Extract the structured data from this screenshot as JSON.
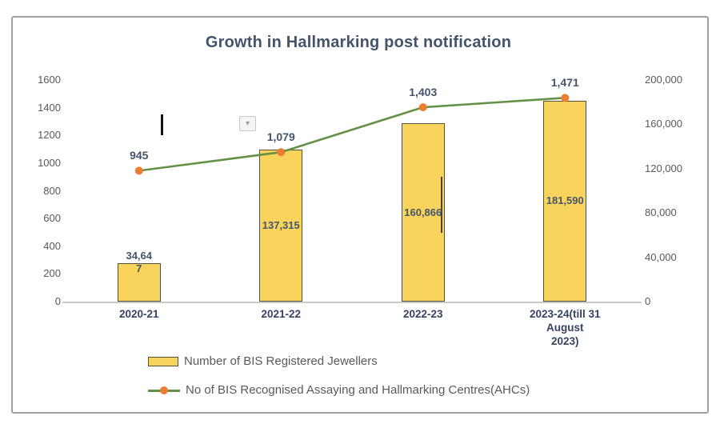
{
  "chart_data": {
    "type": "combo",
    "title": "Growth in Hallmarking post notification",
    "categories": [
      "2020-21",
      "2021-22",
      "2022-23",
      "2023-24(till 31 August 2023)"
    ],
    "category_label_lines": [
      [
        "2020-21"
      ],
      [
        "2021-22"
      ],
      [
        "2022-23"
      ],
      [
        "2023-24(till 31",
        "August",
        "2023)"
      ]
    ],
    "series": [
      {
        "name": "Number of BIS Registered Jewellers",
        "type": "bar",
        "axis": "right",
        "values": [
          34647,
          137315,
          160866,
          181590
        ],
        "data_label_lines": [
          [
            "34,64",
            "7"
          ],
          [
            "137,315"
          ],
          [
            "160,866"
          ],
          [
            "181,590"
          ]
        ]
      },
      {
        "name": "No of BIS Recognised Assaying and Hallmarking Centres(AHCs)",
        "type": "line",
        "axis": "left",
        "values": [
          945,
          1079,
          1403,
          1471
        ],
        "data_labels": [
          "945",
          "1,079",
          "1,403",
          "1,471"
        ]
      }
    ],
    "left_axis": {
      "min": 0,
      "max": 1600,
      "ticks": [
        0,
        200,
        400,
        600,
        800,
        1000,
        1200,
        1400,
        1600
      ],
      "tick_labels": [
        "0",
        "200",
        "400",
        "600",
        "800",
        "1000",
        "1200",
        "1400",
        "1600"
      ]
    },
    "right_axis": {
      "min": 0,
      "max": 200000,
      "ticks": [
        0,
        40000,
        80000,
        120000,
        160000,
        200000
      ],
      "tick_labels": [
        "0",
        "40,000",
        "80,000",
        "120,000",
        "160,000",
        "200,000"
      ]
    },
    "legend": [
      {
        "label": "Number of BIS Registered Jewellers",
        "swatch": "bar"
      },
      {
        "label": "No of BIS Recognised Assaying and Hallmarking Centres(AHCs)",
        "swatch": "line"
      }
    ],
    "legend_position": "bottom-left",
    "grid": false
  },
  "colors": {
    "title": "#44546A",
    "axis_text": "#595959",
    "data_label": "#44546A",
    "category_text": "#364363",
    "bar_fill": "#F9D45C",
    "bar_border": "#55513F",
    "line": "#639146",
    "marker": "#ED7D31",
    "frame_border": "#A0A0A0",
    "baseline": "#C9C9C9",
    "legend_text": "#595959"
  },
  "icons": {
    "dropdown_glyph": "▾"
  }
}
